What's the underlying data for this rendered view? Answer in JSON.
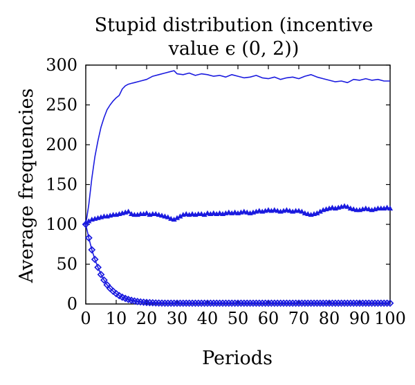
{
  "chart_data": {
    "type": "line",
    "title_lines": [
      "Stupid distribution (incentive",
      "value ϵ (0, 2))"
    ],
    "xlabel": "Periods",
    "ylabel": "Average frequencies",
    "xlim": [
      0,
      100
    ],
    "ylim": [
      0,
      300
    ],
    "xticks": [
      0,
      10,
      20,
      30,
      40,
      50,
      60,
      70,
      80,
      90,
      100
    ],
    "yticks": [
      0,
      50,
      100,
      150,
      200,
      250,
      300
    ],
    "grid": false,
    "legend": "none",
    "color": "#1a1adf",
    "series": [
      {
        "marker": "none",
        "x": [
          0,
          1,
          2,
          3,
          4,
          5,
          6,
          7,
          8,
          9,
          10,
          11,
          12,
          13,
          14,
          15,
          16,
          18,
          20,
          22,
          24,
          26,
          28,
          29,
          30,
          32,
          34,
          36,
          38,
          40,
          42,
          44,
          46,
          48,
          50,
          52,
          54,
          56,
          58,
          60,
          62,
          64,
          66,
          68,
          70,
          72,
          74,
          76,
          78,
          80,
          82,
          84,
          86,
          88,
          90,
          92,
          94,
          96,
          98,
          100
        ],
        "y": [
          100,
          125,
          158,
          185,
          205,
          222,
          234,
          244,
          250,
          255,
          259,
          262,
          270,
          274,
          276,
          277,
          278,
          280,
          282,
          286,
          288,
          290,
          292,
          293,
          289,
          288,
          290,
          287,
          289,
          288,
          286,
          287,
          285,
          288,
          286,
          284,
          285,
          287,
          284,
          283,
          285,
          282,
          284,
          285,
          283,
          286,
          288,
          285,
          283,
          281,
          279,
          280,
          278,
          282,
          281,
          283,
          281,
          282,
          280,
          280
        ]
      },
      {
        "marker": "triangle",
        "x": [
          0,
          1,
          2,
          3,
          4,
          5,
          6,
          7,
          8,
          9,
          10,
          11,
          12,
          13,
          14,
          15,
          16,
          17,
          18,
          19,
          20,
          21,
          22,
          23,
          24,
          25,
          26,
          27,
          28,
          29,
          30,
          31,
          32,
          33,
          34,
          35,
          36,
          37,
          38,
          39,
          40,
          41,
          42,
          43,
          44,
          45,
          46,
          47,
          48,
          49,
          50,
          51,
          52,
          53,
          54,
          55,
          56,
          57,
          58,
          59,
          60,
          61,
          62,
          63,
          64,
          65,
          66,
          67,
          68,
          69,
          70,
          71,
          72,
          73,
          74,
          75,
          76,
          77,
          78,
          79,
          80,
          81,
          82,
          83,
          84,
          85,
          86,
          87,
          88,
          89,
          90,
          91,
          92,
          93,
          94,
          95,
          96,
          97,
          98,
          99,
          100
        ],
        "y": [
          102,
          104,
          106,
          107,
          108,
          109,
          110,
          110,
          111,
          112,
          112,
          113,
          114,
          115,
          116,
          113,
          112,
          112,
          113,
          113,
          114,
          112,
          113,
          113,
          112,
          111,
          110,
          109,
          107,
          106,
          108,
          110,
          112,
          113,
          112,
          113,
          112,
          113,
          113,
          112,
          114,
          113,
          114,
          113,
          114,
          113,
          114,
          115,
          114,
          115,
          114,
          115,
          116,
          115,
          114,
          115,
          116,
          117,
          116,
          117,
          118,
          117,
          118,
          117,
          116,
          117,
          118,
          117,
          116,
          117,
          117,
          116,
          114,
          113,
          112,
          113,
          114,
          116,
          118,
          119,
          120,
          121,
          120,
          121,
          122,
          123,
          122,
          120,
          119,
          118,
          118,
          119,
          120,
          119,
          118,
          119,
          120,
          120,
          120,
          121,
          120
        ]
      },
      {
        "marker": "diamond",
        "x": [
          0,
          1,
          2,
          3,
          4,
          5,
          6,
          7,
          8,
          9,
          10,
          11,
          12,
          13,
          14,
          15,
          16,
          17,
          18,
          19,
          20,
          21,
          22,
          23,
          24,
          25,
          26,
          27,
          28,
          29,
          30,
          31,
          32,
          33,
          34,
          35,
          36,
          37,
          38,
          39,
          40,
          41,
          42,
          43,
          44,
          45,
          46,
          47,
          48,
          49,
          50,
          51,
          52,
          53,
          54,
          55,
          56,
          57,
          58,
          59,
          60,
          61,
          62,
          63,
          64,
          65,
          66,
          67,
          68,
          69,
          70,
          71,
          72,
          73,
          74,
          75,
          76,
          77,
          78,
          79,
          80,
          81,
          82,
          83,
          84,
          85,
          86,
          87,
          88,
          89,
          90,
          91,
          92,
          93,
          94,
          95,
          96,
          97,
          98,
          99,
          100
        ],
        "y": [
          100,
          83,
          68,
          56,
          46,
          37,
          30,
          24,
          19.5,
          16,
          13,
          10.5,
          8.5,
          7,
          5.7,
          4.6,
          3.8,
          3.1,
          2.6,
          2.2,
          1.9,
          1.7,
          1.5,
          1.3,
          1.2,
          1.1,
          1,
          1,
          1,
          1,
          1,
          1,
          1,
          1,
          1,
          1,
          1,
          1,
          1,
          1,
          1,
          1,
          1,
          1,
          1,
          1,
          1,
          1,
          1,
          1,
          1,
          1,
          1,
          1,
          1,
          1,
          1,
          1,
          1,
          1,
          1,
          1,
          1,
          1,
          1,
          1,
          1,
          1,
          1,
          1,
          1,
          1,
          1,
          1,
          1,
          1,
          1,
          1,
          1,
          1,
          1,
          1,
          1,
          1,
          1,
          1,
          1,
          1,
          1,
          1,
          1,
          1,
          1,
          1,
          1,
          1,
          1,
          1,
          1,
          1,
          1
        ]
      }
    ]
  }
}
